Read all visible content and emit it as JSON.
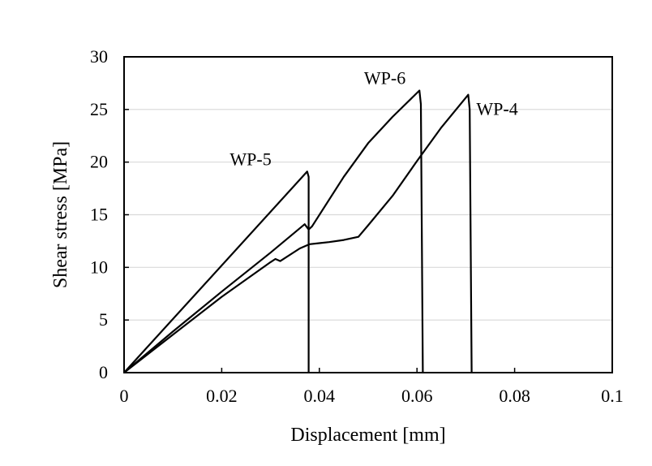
{
  "chart_data": {
    "type": "line",
    "title": "",
    "xlabel": "Displacement [mm]",
    "ylabel": "Shear stress [MPa]",
    "xlim": [
      0,
      0.1
    ],
    "ylim": [
      0,
      30
    ],
    "x_ticks": [
      0,
      0.02,
      0.04,
      0.06,
      0.08,
      0.1
    ],
    "x_tick_labels": [
      "0",
      "0.02",
      "0.04",
      "0.06",
      "0.08",
      "0.1"
    ],
    "y_ticks": [
      0,
      5,
      10,
      15,
      20,
      25,
      30
    ],
    "y_tick_labels": [
      "0",
      "5",
      "10",
      "15",
      "20",
      "25",
      "30"
    ],
    "grid": {
      "horizontal": true,
      "vertical": false
    },
    "legend": "none",
    "line_color": "#000000",
    "grid_color": "#d9d9d9",
    "series": [
      {
        "name": "WP-5",
        "x": [
          0,
          0.0375,
          0.0378,
          0.0378
        ],
        "y": [
          0,
          19.1,
          18.6,
          0
        ]
      },
      {
        "name": "WP-6",
        "x": [
          0,
          0.01,
          0.02,
          0.03,
          0.037,
          0.0378,
          0.0385,
          0.045,
          0.05,
          0.055,
          0.0605,
          0.0608,
          0.0612
        ],
        "y": [
          0,
          3.9,
          7.7,
          11.4,
          14.1,
          13.6,
          13.9,
          18.6,
          21.8,
          24.3,
          26.8,
          25.5,
          0
        ]
      },
      {
        "name": "WP-4",
        "x": [
          0,
          0.01,
          0.02,
          0.03,
          0.031,
          0.032,
          0.036,
          0.038,
          0.04,
          0.042,
          0.045,
          0.048,
          0.05,
          0.055,
          0.06,
          0.065,
          0.0705,
          0.0708,
          0.0712
        ],
        "y": [
          0,
          3.6,
          7.2,
          10.5,
          10.8,
          10.6,
          11.8,
          12.2,
          12.3,
          12.4,
          12.6,
          12.9,
          14.0,
          16.8,
          20.1,
          23.3,
          26.4,
          25.0,
          0
        ]
      }
    ]
  }
}
